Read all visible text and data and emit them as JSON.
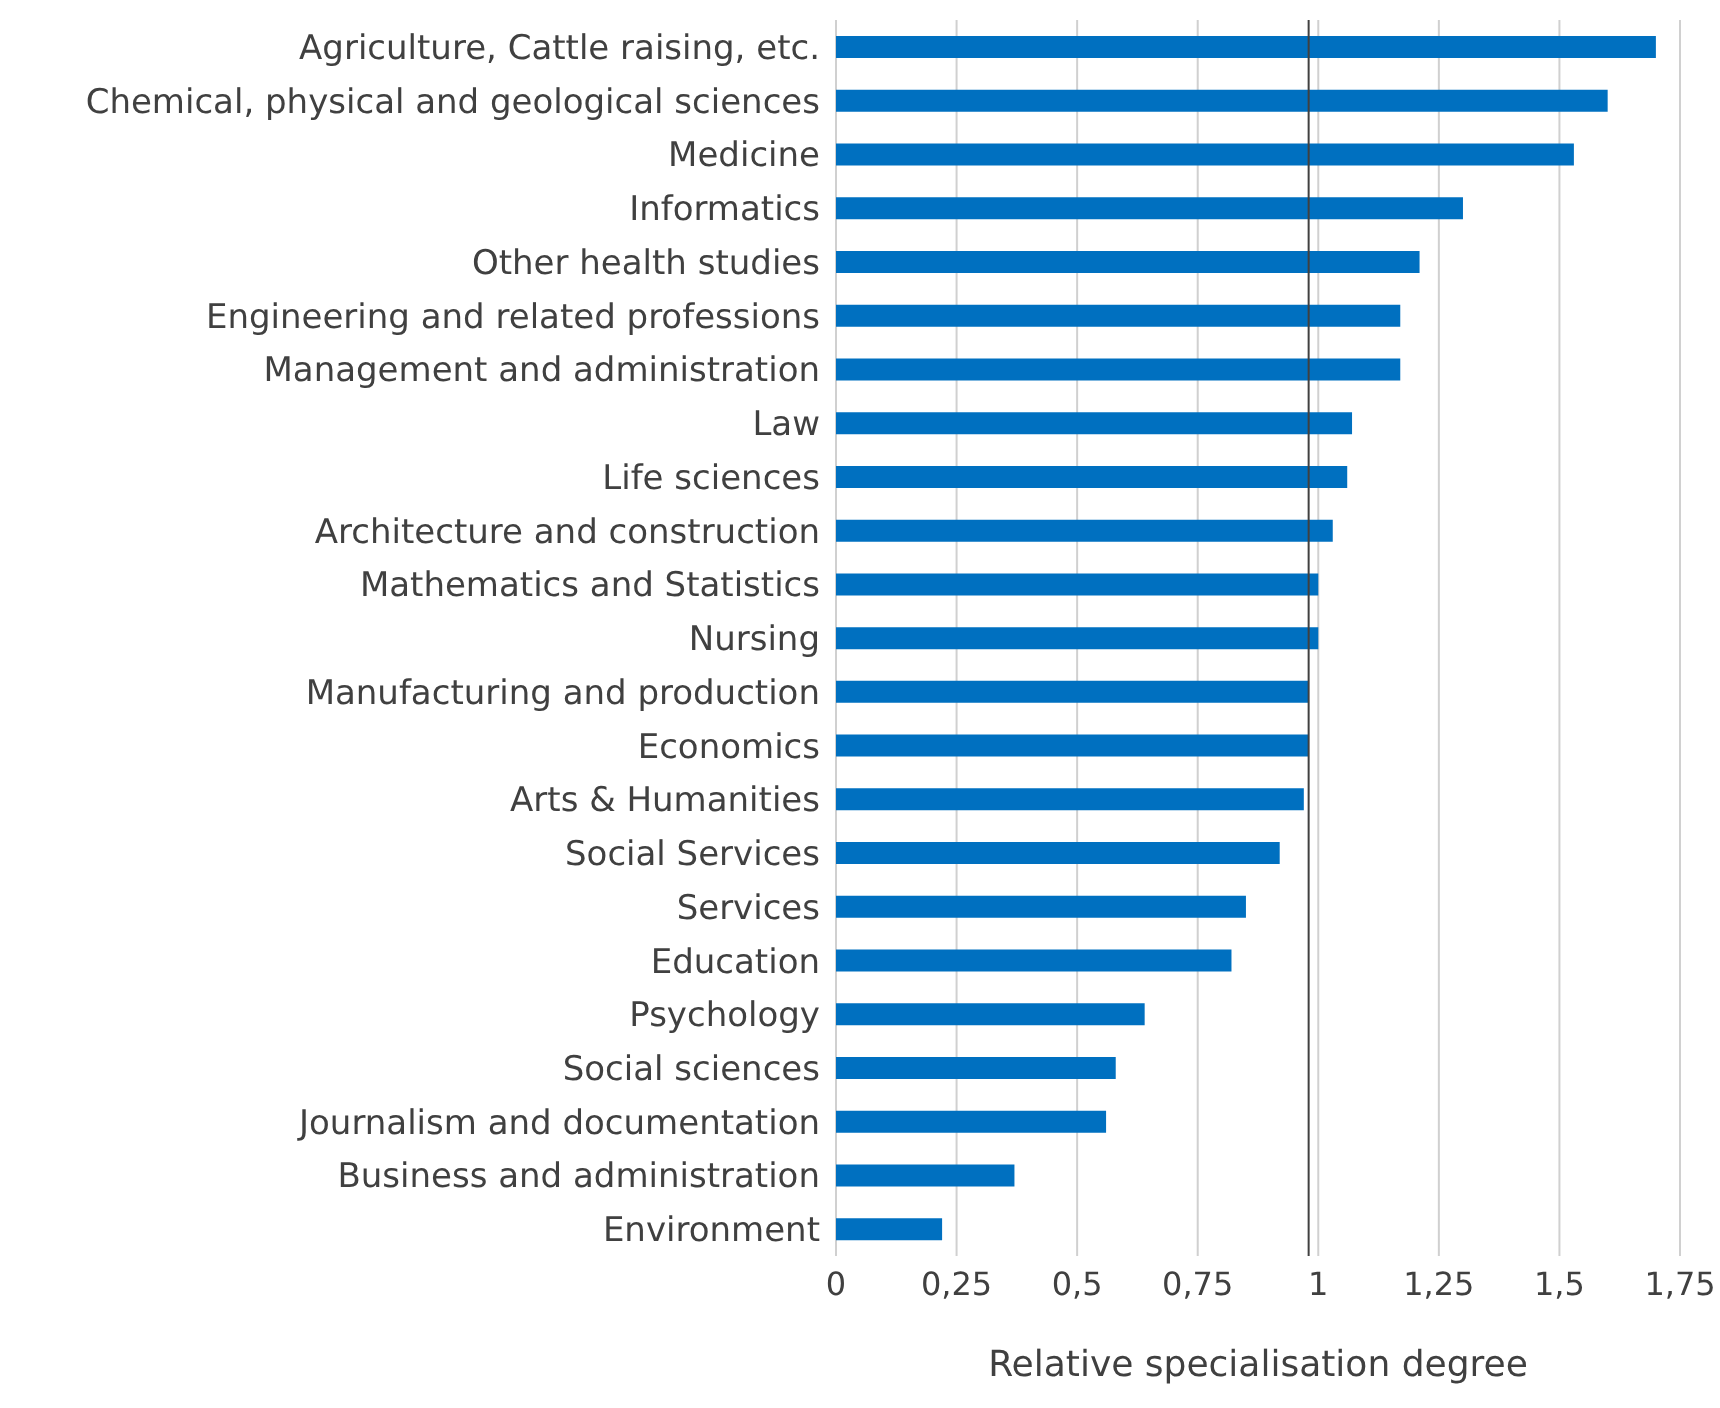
{
  "chart_data": {
    "type": "bar",
    "orientation": "horizontal",
    "xlabel": "Relative specialisation degree",
    "categories": [
      "Agriculture, Cattle raising, etc.",
      "Chemical, physical and geological sciences",
      "Medicine",
      "Informatics",
      "Other health studies",
      "Engineering and related professions",
      "Management and administration",
      "Law",
      "Life sciences",
      "Architecture and construction",
      "Mathematics and Statistics",
      "Nursing",
      "Manufacturing and production",
      "Economics",
      "Arts & Humanities",
      "Social Services",
      "Services",
      "Education",
      "Psychology",
      "Social sciences",
      "Journalism and documentation",
      "Business and administration",
      "Environment"
    ],
    "values": [
      1.7,
      1.6,
      1.53,
      1.3,
      1.21,
      1.17,
      1.17,
      1.07,
      1.06,
      1.03,
      1.0,
      1.0,
      0.98,
      0.98,
      0.97,
      0.92,
      0.85,
      0.82,
      0.64,
      0.58,
      0.56,
      0.37,
      0.22
    ],
    "color": "#0070c0",
    "xlim": [
      0,
      1.75
    ],
    "xticks": [
      0,
      {
        "value": 0.25,
        "label": "0,25"
      },
      {
        "value": 0.5,
        "label": "0,5"
      },
      {
        "value": 0.75,
        "label": "0,75"
      },
      1,
      {
        "value": 1.25,
        "label": "1,25"
      },
      {
        "value": 1.5,
        "label": "1,5"
      },
      {
        "value": 1.75,
        "label": "1,75"
      }
    ],
    "grid": "x",
    "legend": false,
    "ref_lines": [
      {
        "axis": "x",
        "value": 0.98,
        "color": "#404040"
      }
    ]
  }
}
